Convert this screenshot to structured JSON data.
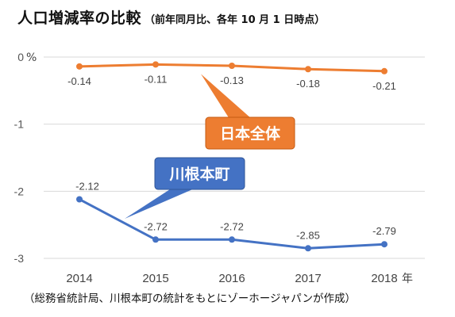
{
  "title": "人口増減率の比較",
  "subtitle": "（前年同月比、各年 10 月 1 日時点）",
  "source_note": "（総務省統計局、川根本町の統計をもとにゾーホージャパンが作成）",
  "colors": {
    "national": "#ED7D31",
    "town": "#4472C4",
    "grid": "#d9d9d9"
  },
  "chart_data": {
    "type": "line",
    "x": [
      "2014",
      "2015",
      "2016",
      "2017",
      "2018"
    ],
    "x_unit": "年",
    "y_unit": "%",
    "ylim": [
      -3,
      0
    ],
    "yticks": [
      0,
      -1,
      -2,
      -3
    ],
    "ytick_labels": [
      "0",
      "-1",
      "-2",
      "-3"
    ],
    "grid": true,
    "series": [
      {
        "name": "日本全体",
        "values": [
          -0.14,
          -0.11,
          -0.13,
          -0.18,
          -0.21
        ],
        "labels": [
          "-0.14",
          "-0.11",
          "-0.13",
          "-0.18",
          "-0.21"
        ]
      },
      {
        "name": "川根本町",
        "values": [
          -2.12,
          -2.72,
          -2.72,
          -2.85,
          -2.79
        ],
        "labels": [
          "-2.12",
          "-2.72",
          "-2.72",
          "-2.85",
          "-2.79"
        ]
      }
    ]
  }
}
